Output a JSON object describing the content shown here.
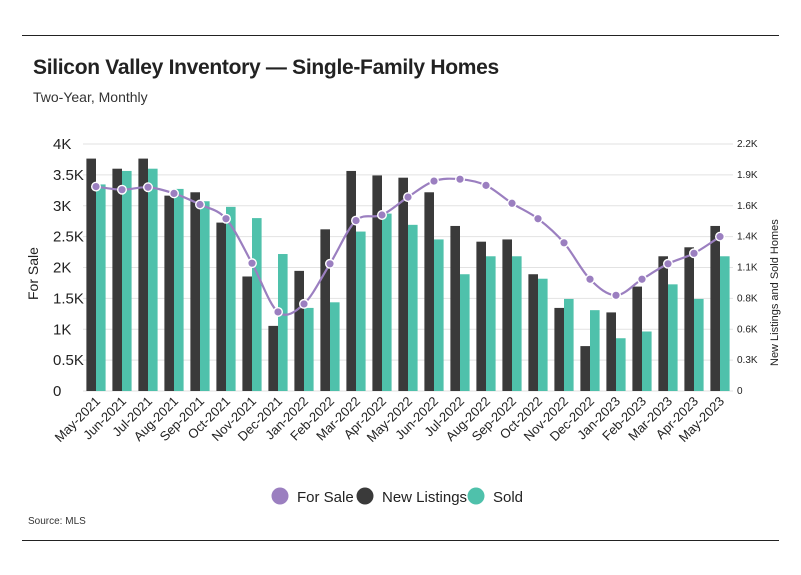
{
  "title": "Silicon Valley Inventory — Single-Family Homes",
  "subtitle": "Two-Year, Monthly",
  "source": "Source: MLS",
  "colors": {
    "for_sale": "#9b7fc0",
    "new_listings": "#3a3a3a",
    "sold": "#4fc1ab",
    "grid": "#e2e2e2",
    "text": "#222222"
  },
  "chart_data": {
    "type": "bar",
    "categories": [
      "May-2021",
      "Jun-2021",
      "Jul-2021",
      "Aug-2021",
      "Sep-2021",
      "Oct-2021",
      "Nov-2021",
      "Dec-2021",
      "Jan-2022",
      "Feb-2022",
      "Mar-2022",
      "Apr-2022",
      "May-2022",
      "Jun-2022",
      "Jul-2022",
      "Aug-2022",
      "Sep-2022",
      "Oct-2022",
      "Nov-2022",
      "Dec-2022",
      "Jan-2023",
      "Feb-2023",
      "Mar-2023",
      "Apr-2023",
      "May-2023"
    ],
    "ylabel": "For Sale",
    "y2label": "New Listings and Sold Homes",
    "ylim": [
      0,
      4000
    ],
    "y2lim": [
      0,
      2200
    ],
    "yticks": [
      "0",
      "0.5K",
      "1K",
      "1.5K",
      "2K",
      "2.5K",
      "3K",
      "3.5K",
      "4K"
    ],
    "y2ticks": [
      "0",
      "0.3K",
      "0.6K",
      "0.8K",
      "1.1K",
      "1.4K",
      "1.6K",
      "1.9K",
      "2.2K"
    ],
    "grid": true,
    "legend_position": "bottom",
    "series": [
      {
        "name": "For Sale",
        "type": "line",
        "axis": "left",
        "values": [
          3310,
          3260,
          3300,
          3200,
          3020,
          2790,
          2070,
          1280,
          1410,
          2060,
          2760,
          2850,
          3140,
          3400,
          3430,
          3330,
          3040,
          2790,
          2400,
          1810,
          1550,
          1810,
          2060,
          2230,
          2500
        ]
      },
      {
        "name": "New Listings",
        "type": "bar",
        "axis": "right",
        "values": [
          2070,
          1980,
          2070,
          1740,
          1770,
          1500,
          1020,
          580,
          1070,
          1440,
          1960,
          1920,
          1900,
          1770,
          1470,
          1330,
          1350,
          1040,
          740,
          400,
          700,
          930,
          1200,
          1280,
          1470
        ]
      },
      {
        "name": "Sold",
        "type": "bar",
        "axis": "right",
        "values": [
          1840,
          1960,
          1980,
          1800,
          1690,
          1640,
          1540,
          1220,
          740,
          790,
          1420,
          1580,
          1480,
          1350,
          1040,
          1200,
          1200,
          1000,
          820,
          720,
          470,
          530,
          950,
          820,
          1200
        ]
      }
    ]
  }
}
